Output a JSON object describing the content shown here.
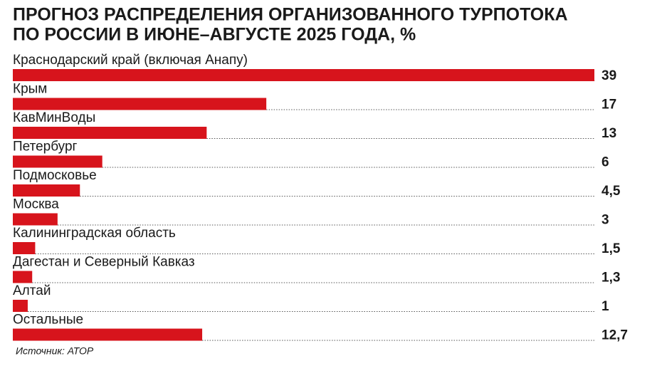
{
  "chart_data": {
    "type": "hbar",
    "title_lines": [
      "ПРОГНОЗ РАСПРЕДЕЛЕНИЯ ОРГАНИЗОВАННОГО ТУРПОТОКА",
      "ПО РОССИИ В ИЮНЕ–АВГУСТЕ 2025 ГОДА, %"
    ],
    "categories": [
      "Краснодарский край (включая Анапу)",
      "Крым",
      "КавМинВоды",
      "Петербург",
      "Подмосковье",
      "Москва",
      "Калининградская область",
      "Дагестан и Северный Кавказ",
      "Алтай",
      "Остальные"
    ],
    "values": [
      39,
      17,
      13,
      6,
      4.5,
      3,
      1.5,
      1.3,
      1,
      12.7
    ],
    "value_labels": [
      "39",
      "17",
      "13",
      "6",
      "4,5",
      "3",
      "1,5",
      "1,3",
      "1",
      "12,7"
    ],
    "color": "#d7141c",
    "source": "Источник: АТОР"
  }
}
